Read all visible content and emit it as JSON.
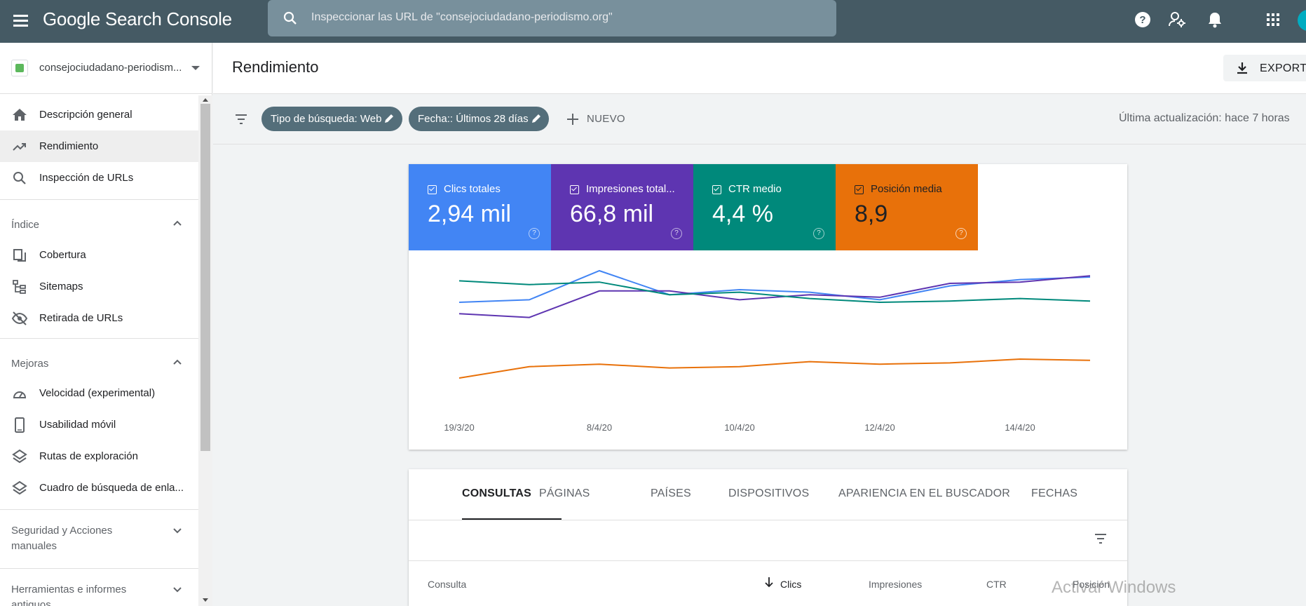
{
  "app": {
    "logo": "Google Search Console",
    "search_placeholder": "Inspeccionar las URL de \"consejociudadano-periodismo.org\""
  },
  "sidebar": {
    "property": "consejociudadano-periodism...",
    "items": [
      {
        "label": "Descripción general",
        "icon": "home-icon"
      },
      {
        "label": "Rendimiento",
        "icon": "trending-up-icon",
        "active": true
      },
      {
        "label": "Inspección de URLs",
        "icon": "search-icon"
      }
    ],
    "sections": [
      {
        "label": "Índice",
        "expanded": true,
        "items": [
          {
            "label": "Cobertura",
            "icon": "file-copy-icon"
          },
          {
            "label": "Sitemaps",
            "icon": "sitemap-icon"
          },
          {
            "label": "Retirada de URLs",
            "icon": "visibility-off-icon"
          }
        ]
      },
      {
        "label": "Mejoras",
        "expanded": true,
        "items": [
          {
            "label": "Velocidad (experimental)",
            "icon": "speed-icon"
          },
          {
            "label": "Usabilidad móvil",
            "icon": "smartphone-icon"
          },
          {
            "label": "Rutas de exploración",
            "icon": "layers-icon"
          },
          {
            "label": "Cuadro de búsqueda de enla...",
            "icon": "layers-icon"
          }
        ]
      },
      {
        "label": "Seguridad y Acciones manuales",
        "expanded": false
      },
      {
        "label": "Herramientas e informes antiguos",
        "expanded": false
      }
    ]
  },
  "header": {
    "title": "Rendimiento",
    "export_label": "EXPORTA"
  },
  "filters": {
    "chips": [
      "Tipo de búsqueda: Web",
      "Fecha:: Últimos 28 días"
    ],
    "new_label": "NUEVO",
    "last_update": "Última actualización: hace 7 horas"
  },
  "metrics": [
    {
      "label": "Clics totales",
      "value": "2,94 mil",
      "color": "#4285f4"
    },
    {
      "label": "Impresiones total...",
      "value": "66,8 mil",
      "color": "#5e35b1"
    },
    {
      "label": "CTR medio",
      "value": "4,4 %",
      "color": "#00897b"
    },
    {
      "label": "Posición media",
      "value": "8,9",
      "color": "#e8710a"
    }
  ],
  "chart_data": {
    "type": "line",
    "x_ticks": [
      "19/3/20",
      "8/4/20",
      "10/4/20",
      "12/4/20",
      "14/4/20"
    ],
    "series": [
      {
        "name": "Clics totales",
        "color": "#4285f4",
        "values": [
          0.7,
          0.72,
          0.95,
          0.76,
          0.8,
          0.78,
          0.72,
          0.83,
          0.88,
          0.9
        ]
      },
      {
        "name": "Impresiones totales",
        "color": "#5e35b1",
        "values": [
          0.61,
          0.58,
          0.79,
          0.79,
          0.72,
          0.76,
          0.74,
          0.85,
          0.86,
          0.91
        ]
      },
      {
        "name": "CTR medio",
        "color": "#00897b",
        "values": [
          0.87,
          0.84,
          0.86,
          0.76,
          0.78,
          0.73,
          0.7,
          0.71,
          0.73,
          0.71
        ]
      },
      {
        "name": "Posición media",
        "color": "#e8710a",
        "values": [
          0.1,
          0.19,
          0.21,
          0.18,
          0.19,
          0.23,
          0.21,
          0.22,
          0.25,
          0.24
        ]
      }
    ]
  },
  "table": {
    "tabs": [
      "CONSULTAS",
      "PÁGINAS",
      "PAÍSES",
      "DISPOSITIVOS",
      "APARIENCIA EN EL BUSCADOR",
      "FECHAS"
    ],
    "columns": [
      "Consulta",
      "Clics",
      "Impresiones",
      "CTR",
      "Posición"
    ]
  },
  "watermark": "Activar Windows"
}
